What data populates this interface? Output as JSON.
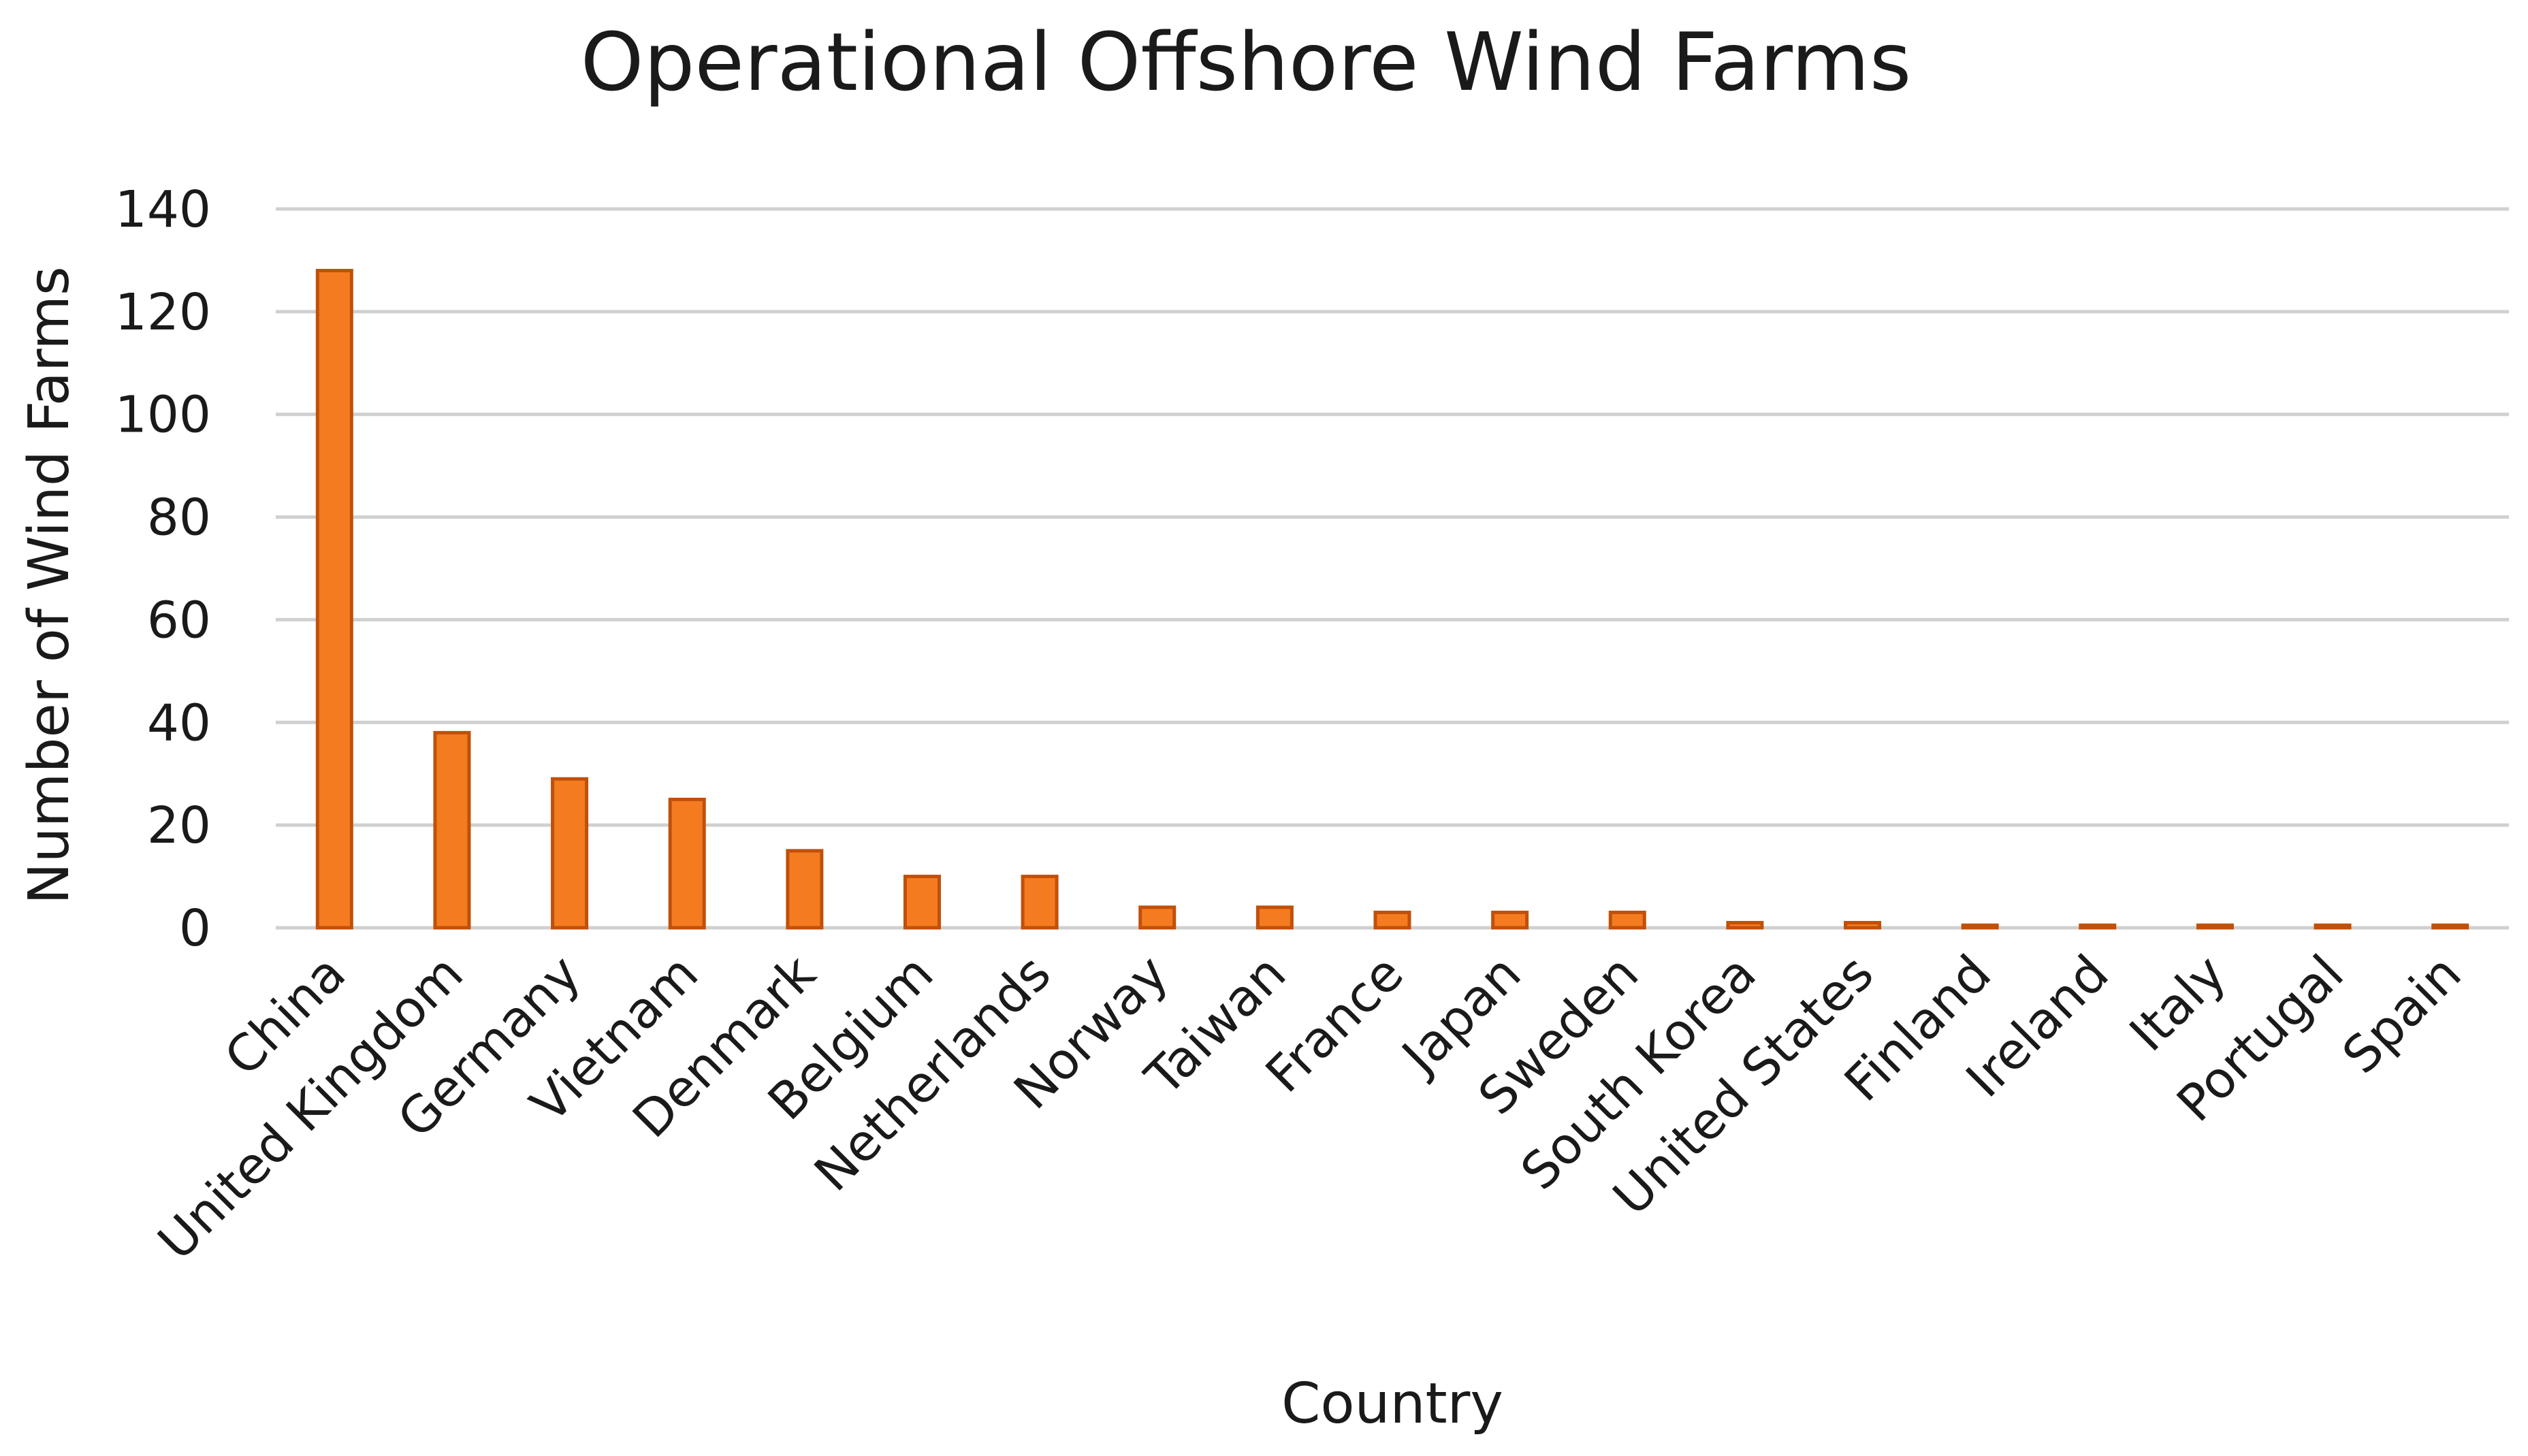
{
  "chart_data": {
    "type": "bar",
    "title": "Operational Offshore Wind Farms",
    "xlabel": "Country",
    "ylabel": "Number of Wind Farms",
    "categories": [
      "China",
      "United Kingdom",
      "Germany",
      "Vietnam",
      "Denmark",
      "Belgium",
      "Netherlands",
      "Norway",
      "Taiwan",
      "France",
      "Japan",
      "Sweden",
      "South Korea",
      "United States",
      "Finland",
      "Ireland",
      "Italy",
      "Portugal",
      "Spain"
    ],
    "values": [
      128,
      38,
      29,
      25,
      15,
      10,
      10,
      4,
      4,
      3,
      3,
      3,
      1,
      1,
      0.5,
      0.5,
      0.5,
      0.5,
      0.5
    ],
    "ylim": [
      0,
      140
    ],
    "yticks": [
      0,
      20,
      40,
      60,
      80,
      100,
      120,
      140
    ],
    "grid": true,
    "legend": "none",
    "colors": {
      "bar_fill": "#f47b20",
      "bar_edge": "#c0500a",
      "grid": "#d0d0d0",
      "text": "#1a1a1a"
    }
  }
}
